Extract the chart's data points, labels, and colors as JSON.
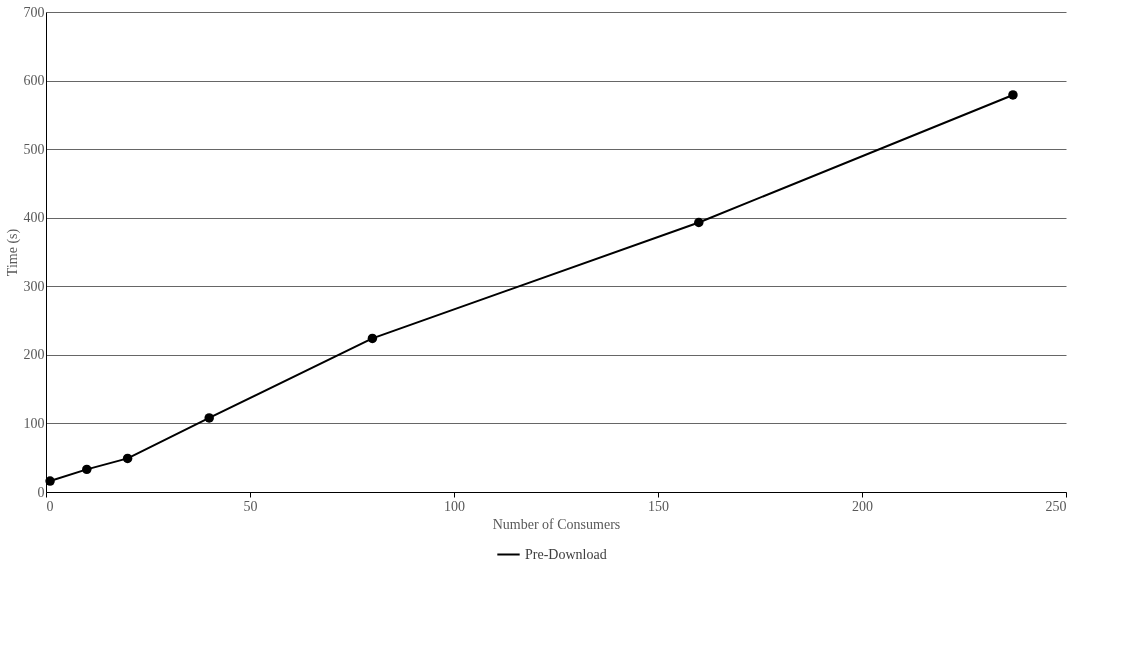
{
  "chart_data": {
    "type": "line",
    "xlabel": "Number of Consumers",
    "ylabel": "Time (s)",
    "x": [
      1,
      10,
      20,
      40,
      80,
      160,
      237
    ],
    "series": [
      {
        "name": "Pre-Download",
        "color": "#000000",
        "values": [
          16,
          33,
          49,
          108,
          224,
          393,
          579
        ]
      }
    ],
    "xlim": [
      0,
      250
    ],
    "xticks": [
      0,
      50,
      100,
      150,
      200,
      250
    ],
    "ylim": [
      0,
      700
    ],
    "yticks": [
      0,
      100,
      200,
      300,
      400,
      500,
      600,
      700
    ],
    "grid": "y",
    "legend": "bottom",
    "marker": "circle",
    "line_style": "solid"
  }
}
